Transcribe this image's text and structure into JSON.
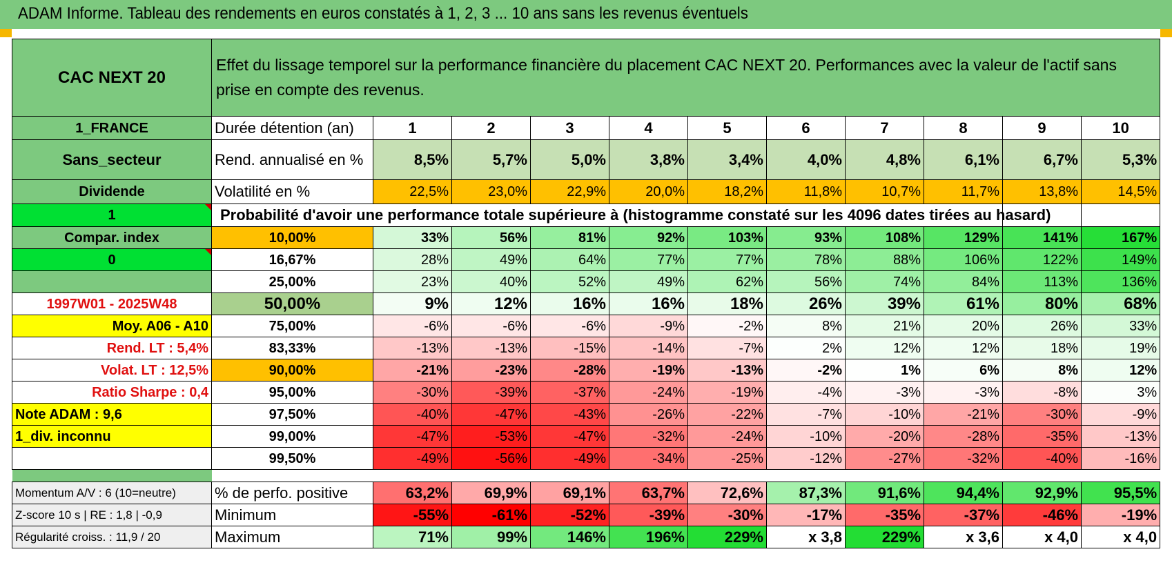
{
  "title": "ADAM Informe. Tableau des rendements en euros constatés à 1, 2, 3 ... 10 ans sans les revenus éventuels",
  "left_panel": {
    "name": "CAC NEXT 20",
    "country": "1_FRANCE",
    "sector": "Sans_secteur",
    "type": "Dividende",
    "flag1": "1",
    "compar_index": "Compar. index",
    "flag0": "0",
    "period": "1997W01 - 2025W48",
    "moy": "Moy. A06 - A10",
    "rend_lt": "Rend. LT :    5,4%",
    "volat_lt": "Volat. LT :    12,5%",
    "sharpe": "Ratio Sharpe :     0,4",
    "note": "Note ADAM : 9,6",
    "div": "1_div. inconnu"
  },
  "description": "Effet du lissage temporel sur la performance financière du placement CAC NEXT 20. Performances avec la valeur de l'actif sans prise en compte des revenus.",
  "header_label": "Durée détention (an)",
  "years": [
    "1",
    "2",
    "3",
    "4",
    "5",
    "6",
    "7",
    "8",
    "9",
    "10"
  ],
  "rend": {
    "label": "Rend. annualisé en %",
    "values": [
      "8,5%",
      "5,7%",
      "5,0%",
      "3,8%",
      "3,4%",
      "4,0%",
      "4,8%",
      "6,1%",
      "6,7%",
      "5,3%"
    ]
  },
  "vol": {
    "label": "Volatilité en %",
    "values": [
      "22,5%",
      "23,0%",
      "22,9%",
      "20,0%",
      "18,2%",
      "11,8%",
      "10,7%",
      "11,7%",
      "13,8%",
      "14,5%"
    ]
  },
  "prob_title": "Probabilité d'avoir une performance totale supérieure à (histogramme constaté sur les 4096 dates tirées au hasard)",
  "quantiles": [
    {
      "p": "10,00%",
      "values": [
        "33%",
        "56%",
        "81%",
        "92%",
        "103%",
        "93%",
        "108%",
        "129%",
        "141%",
        "167%"
      ]
    },
    {
      "p": "16,67%",
      "values": [
        "28%",
        "49%",
        "64%",
        "77%",
        "77%",
        "78%",
        "88%",
        "106%",
        "122%",
        "149%"
      ]
    },
    {
      "p": "25,00%",
      "values": [
        "23%",
        "40%",
        "52%",
        "49%",
        "62%",
        "56%",
        "74%",
        "84%",
        "113%",
        "136%"
      ]
    },
    {
      "p": "50,00%",
      "values": [
        "9%",
        "12%",
        "16%",
        "16%",
        "18%",
        "26%",
        "39%",
        "61%",
        "80%",
        "68%"
      ]
    },
    {
      "p": "75,00%",
      "values": [
        "-6%",
        "-6%",
        "-6%",
        "-9%",
        "-2%",
        "8%",
        "21%",
        "20%",
        "26%",
        "33%"
      ]
    },
    {
      "p": "83,33%",
      "values": [
        "-13%",
        "-13%",
        "-15%",
        "-14%",
        "-7%",
        "2%",
        "12%",
        "12%",
        "18%",
        "19%"
      ]
    },
    {
      "p": "90,00%",
      "values": [
        "-21%",
        "-23%",
        "-28%",
        "-19%",
        "-13%",
        "-2%",
        "1%",
        "6%",
        "8%",
        "12%"
      ]
    },
    {
      "p": "95,00%",
      "values": [
        "-30%",
        "-39%",
        "-37%",
        "-24%",
        "-19%",
        "-4%",
        "-3%",
        "-3%",
        "-8%",
        "3%"
      ]
    },
    {
      "p": "97,50%",
      "values": [
        "-40%",
        "-47%",
        "-43%",
        "-26%",
        "-22%",
        "-7%",
        "-10%",
        "-21%",
        "-30%",
        "-9%"
      ]
    },
    {
      "p": "99,00%",
      "values": [
        "-47%",
        "-53%",
        "-47%",
        "-32%",
        "-24%",
        "-10%",
        "-20%",
        "-28%",
        "-35%",
        "-13%"
      ]
    },
    {
      "p": "99,50%",
      "values": [
        "-49%",
        "-56%",
        "-49%",
        "-34%",
        "-25%",
        "-12%",
        "-27%",
        "-32%",
        "-40%",
        "-16%"
      ]
    }
  ],
  "bottom": [
    {
      "left": "Momentum A/V : 6 (10=neutre)",
      "label": "% de perfo. positive",
      "values": [
        "63,2%",
        "69,9%",
        "69,1%",
        "63,7%",
        "72,6%",
        "87,3%",
        "91,6%",
        "94,4%",
        "92,9%",
        "95,5%"
      ]
    },
    {
      "left": "Z-score 10 s | RE : 1,8 | -0,9",
      "label": "Minimum",
      "values": [
        "-55%",
        "-61%",
        "-52%",
        "-39%",
        "-30%",
        "-17%",
        "-35%",
        "-37%",
        "-46%",
        "-19%"
      ]
    },
    {
      "left": "Régularité croiss. : 11,9 / 20",
      "label": "Maximum",
      "values": [
        "71%",
        "99%",
        "146%",
        "196%",
        "229%",
        "x 3,8",
        "229%",
        "x 3,6",
        "x 4,0",
        "x 4,0"
      ]
    }
  ],
  "colors": {
    "header_green": "#7dc97f",
    "bright_green": "#00e033",
    "yellow": "#ffff00",
    "orange": "#ffc000",
    "light_green": "#c6e0b4",
    "red_text": "#e01010"
  }
}
